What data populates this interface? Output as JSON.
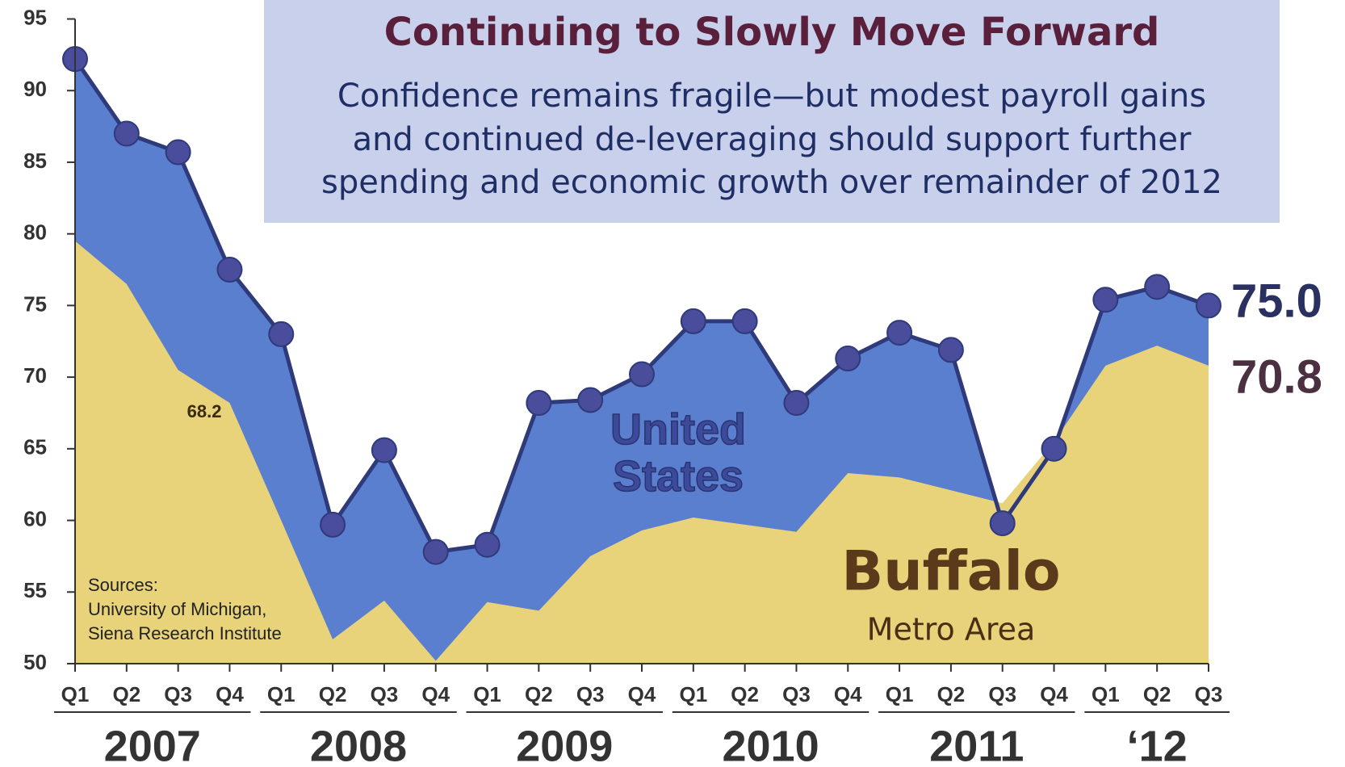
{
  "chart_data": {
    "type": "area",
    "title": "Continuing to Slowly Move Forward",
    "subtitle": [
      "Confidence remains fragile—but modest payroll gains",
      "and continued de-leveraging should support further",
      "spending and economic growth over remainder of 2012"
    ],
    "groups": [
      {
        "label": "2007",
        "quarters": [
          "Q1",
          "Q2",
          "Q3",
          "Q4"
        ]
      },
      {
        "label": "2008",
        "quarters": [
          "Q1",
          "Q2",
          "Q3",
          "Q4"
        ]
      },
      {
        "label": "2009",
        "quarters": [
          "Q1",
          "Q2",
          "Q3",
          "Q4"
        ]
      },
      {
        "label": "2010",
        "quarters": [
          "Q1",
          "Q2",
          "Q3",
          "Q4"
        ]
      },
      {
        "label": "2011",
        "quarters": [
          "Q1",
          "Q2",
          "Q3",
          "Q4"
        ]
      },
      {
        "label": "‘12",
        "quarters": [
          "Q1",
          "Q2",
          "Q3"
        ]
      }
    ],
    "series": [
      {
        "name": "United States",
        "color": "#5b7fcf",
        "line_color": "#2e3a7a",
        "values": [
          92.2,
          87,
          85.7,
          77.5,
          73,
          59.7,
          64.9,
          57.8,
          58.3,
          68.2,
          68.4,
          70.2,
          73.9,
          73.9,
          68.2,
          71.3,
          73.1,
          71.9,
          59.8,
          65,
          75.4,
          76.3,
          75.0
        ],
        "value_labels": [
          null,
          null,
          null,
          null,
          null,
          null,
          null,
          null,
          null,
          null,
          null,
          null,
          null,
          null,
          null,
          null,
          null,
          null,
          null,
          null,
          null,
          null,
          "75.0"
        ]
      },
      {
        "name": "Buffalo",
        "subtitle": "Metro Area",
        "color": "#e8d27a",
        "values": [
          79.5,
          76.5,
          70.5,
          68.2,
          60,
          51.7,
          54.4,
          50.2,
          54.3,
          53.7,
          57.5,
          59.3,
          60.2,
          59.7,
          59.2,
          63.3,
          63,
          62.1,
          61.2,
          65.5,
          70.8,
          72.2,
          70.8
        ],
        "value_labels": [
          null,
          null,
          null,
          "68.2",
          null,
          null,
          null,
          null,
          null,
          null,
          null,
          null,
          null,
          null,
          null,
          null,
          null,
          null,
          null,
          null,
          null,
          null,
          "70.8"
        ]
      }
    ],
    "ylim": [
      50,
      95
    ],
    "yticks": [
      50,
      55,
      60,
      65,
      70,
      75,
      80,
      85,
      90,
      95
    ],
    "sources": [
      "Sources:",
      "University of Michigan,",
      "Siena Research Institute"
    ]
  }
}
